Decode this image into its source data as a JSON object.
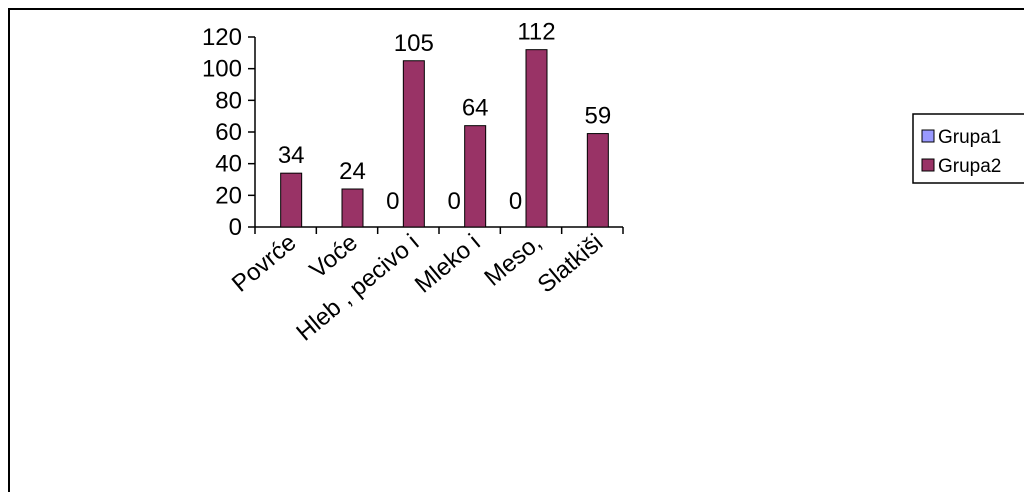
{
  "chart_data": {
    "type": "bar",
    "categories": [
      "Povrće",
      "Voće",
      "Hleb , pecivo i",
      "Mleko i",
      "Meso,",
      "Slatkiši"
    ],
    "series": [
      {
        "name": "Grupa1",
        "values": [
          null,
          null,
          0,
          0,
          0,
          null
        ],
        "data_labels": [
          "",
          "",
          "0",
          "0",
          "0",
          ""
        ],
        "color": "#9999ff"
      },
      {
        "name": "Grupa2",
        "values": [
          34,
          24,
          105,
          64,
          112,
          59
        ],
        "data_labels": [
          "34",
          "24",
          "105",
          "64",
          "112",
          "59"
        ],
        "color": "#993366"
      }
    ],
    "yticks": [
      "0",
      "20",
      "40",
      "60",
      "80",
      "100",
      "120"
    ],
    "ylim": [
      0,
      120
    ],
    "grid": false,
    "legend": "right"
  }
}
